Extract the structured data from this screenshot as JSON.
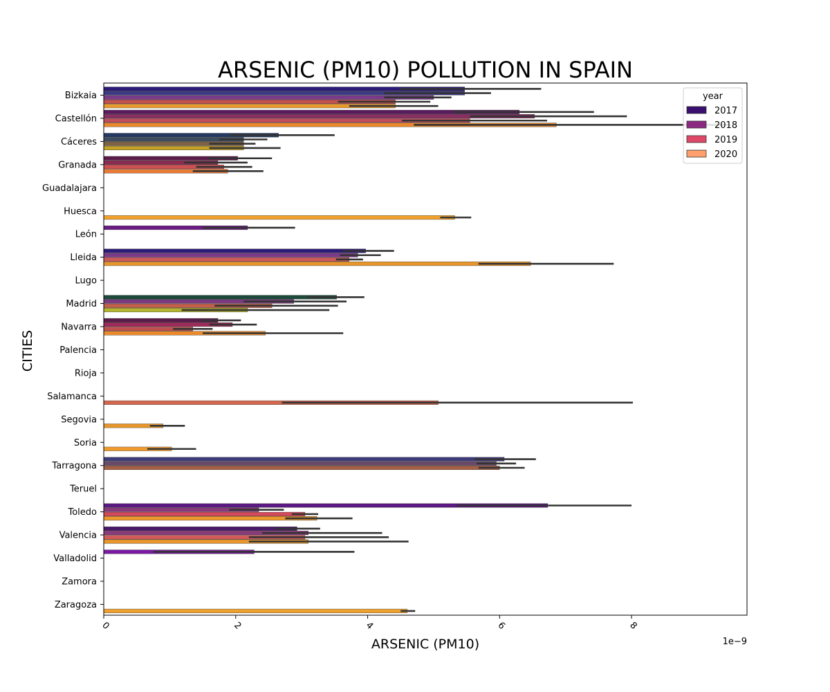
{
  "chart_data": {
    "type": "bar",
    "orientation": "horizontal",
    "title": "ARSENIC (PM10) POLLUTION IN SPAIN",
    "xlabel": "ARSENIC (PM10)",
    "ylabel": "CITIES",
    "x_offset_label": "1e−9",
    "xlim": [
      0,
      9.75
    ],
    "x_ticks": [
      0,
      2,
      4,
      6,
      8
    ],
    "x_tick_labels": [
      "0",
      "2",
      "4",
      "6",
      "8"
    ],
    "grid": false,
    "legend": {
      "title": "year",
      "placement": "top-right",
      "entries": [
        "2017",
        "2018",
        "2019",
        "2020"
      ]
    },
    "colors": {
      "2017": "#3b0f70",
      "2018": "#8c2981",
      "2019": "#de4968",
      "2020": "#fe9f6d",
      "errorbar": "#333333"
    },
    "categories": [
      "Bizkaia",
      "Castellón",
      "Cáceres",
      "Granada",
      "Guadalajara",
      "Huesca",
      "León",
      "Lleida",
      "Lugo",
      "Madrid",
      "Navarra",
      "Palencia",
      "Rioja",
      "Salamanca",
      "Segovia",
      "Soria",
      "Tarragona",
      "Teruel",
      "Toledo",
      "Valencia",
      "Valladolid",
      "Zamora",
      "Zaragoza"
    ],
    "bars": [
      {
        "city": 0,
        "pos": 0,
        "value": 5.47,
        "err": [
          4.48,
          6.63
        ],
        "color": "#2c1a78",
        "year": "2017"
      },
      {
        "city": 0,
        "pos": 1,
        "value": 5.47,
        "err": [
          4.25,
          5.87
        ],
        "color": "#3d3a85",
        "year": "2017"
      },
      {
        "city": 0,
        "pos": 2,
        "value": 5.0,
        "err": [
          4.25,
          5.27
        ],
        "color": "#7b3a8a",
        "year": "2018"
      },
      {
        "city": 0,
        "pos": 3,
        "value": 4.42,
        "err": [
          3.55,
          4.95
        ],
        "color": "#c5504f",
        "year": "2019"
      },
      {
        "city": 0,
        "pos": 4,
        "value": 4.42,
        "err": [
          3.72,
          5.07
        ],
        "color": "#e89a2c",
        "year": "2020"
      },
      {
        "city": 1,
        "pos": 0,
        "value": 6.3,
        "err": [
          5.3,
          7.43
        ],
        "color": "#5a1a5e",
        "year": "2017"
      },
      {
        "city": 1,
        "pos": 1,
        "value": 6.53,
        "err": [
          5.55,
          7.93
        ],
        "color": "#8a2f62",
        "year": "2018"
      },
      {
        "city": 1,
        "pos": 2,
        "value": 5.55,
        "err": [
          4.52,
          6.72
        ],
        "color": "#c14d5a",
        "year": "2019"
      },
      {
        "city": 1,
        "pos": 3,
        "value": 6.86,
        "err": [
          4.7,
          9.5
        ],
        "color": "#e9892c",
        "year": "2020"
      },
      {
        "city": 2,
        "pos": 0,
        "value": 2.65,
        "err": [
          1.92,
          3.5
        ],
        "color": "#243a63",
        "year": "2017"
      },
      {
        "city": 2,
        "pos": 1,
        "value": 2.12,
        "err": [
          1.75,
          2.48
        ],
        "color": "#3e4c60",
        "year": "2018"
      },
      {
        "city": 2,
        "pos": 2,
        "value": 2.12,
        "err": [
          1.6,
          2.3
        ],
        "color": "#7f6244",
        "year": "2019"
      },
      {
        "city": 2,
        "pos": 3,
        "value": 2.12,
        "err": [
          1.6,
          2.68
        ],
        "color": "#c4a226",
        "year": "2020"
      },
      {
        "city": 3,
        "pos": 0,
        "value": 2.03,
        "err": [
          1.57,
          2.55
        ],
        "color": "#5a1a4a",
        "year": "2017"
      },
      {
        "city": 3,
        "pos": 1,
        "value": 1.73,
        "err": [
          1.22,
          2.18
        ],
        "color": "#8c2a52",
        "year": "2018"
      },
      {
        "city": 3,
        "pos": 2,
        "value": 1.82,
        "err": [
          1.4,
          2.25
        ],
        "color": "#cf5050",
        "year": "2019"
      },
      {
        "city": 3,
        "pos": 3,
        "value": 1.88,
        "err": [
          1.35,
          2.42
        ],
        "color": "#ea7a35",
        "year": "2020"
      },
      {
        "city": 5,
        "pos": 3,
        "value": 5.32,
        "err": [
          5.1,
          5.57
        ],
        "color": "#f0a12c",
        "year": "2020"
      },
      {
        "city": 6,
        "pos": 0,
        "value": 2.18,
        "err": [
          1.5,
          2.9
        ],
        "color": "#6a1a82",
        "year": "2018"
      },
      {
        "city": 7,
        "pos": 0,
        "value": 3.97,
        "err": [
          3.62,
          4.4
        ],
        "color": "#2c1a78",
        "year": "2017"
      },
      {
        "city": 7,
        "pos": 1,
        "value": 3.85,
        "err": [
          3.58,
          4.2
        ],
        "color": "#7b3a8a",
        "year": "2018"
      },
      {
        "city": 7,
        "pos": 2,
        "value": 3.72,
        "err": [
          3.52,
          3.93
        ],
        "color": "#cf5a5a",
        "year": "2019"
      },
      {
        "city": 7,
        "pos": 3,
        "value": 6.47,
        "err": [
          5.68,
          7.73
        ],
        "color": "#e8962c",
        "year": "2020"
      },
      {
        "city": 9,
        "pos": 0,
        "value": 3.53,
        "err": [
          3.08,
          3.95
        ],
        "color": "#1e4a3c",
        "year": "2017"
      },
      {
        "city": 9,
        "pos": 1,
        "value": 2.88,
        "err": [
          2.12,
          3.68
        ],
        "color": "#7b3a80",
        "year": "2018"
      },
      {
        "city": 9,
        "pos": 2,
        "value": 2.55,
        "err": [
          1.68,
          3.55
        ],
        "color": "#c2604a",
        "year": "2019"
      },
      {
        "city": 9,
        "pos": 3,
        "value": 2.18,
        "err": [
          1.18,
          3.42
        ],
        "color": "#b4b42e",
        "year": "2020"
      },
      {
        "city": 10,
        "pos": 0,
        "value": 1.73,
        "err": [
          1.47,
          2.08
        ],
        "color": "#5a1a4a",
        "year": "2017"
      },
      {
        "city": 10,
        "pos": 1,
        "value": 1.95,
        "err": [
          1.6,
          2.32
        ],
        "color": "#a02a5a",
        "year": "2018"
      },
      {
        "city": 10,
        "pos": 2,
        "value": 1.35,
        "err": [
          1.05,
          1.65
        ],
        "color": "#c05050",
        "year": "2019"
      },
      {
        "city": 10,
        "pos": 3,
        "value": 2.45,
        "err": [
          1.5,
          3.63
        ],
        "color": "#ec8a2a",
        "year": "2020"
      },
      {
        "city": 13,
        "pos": 3,
        "value": 5.07,
        "err": [
          2.7,
          8.02
        ],
        "color": "#d2684e",
        "year": "2019"
      },
      {
        "city": 14,
        "pos": 3,
        "value": 0.9,
        "err": [
          0.7,
          1.23
        ],
        "color": "#e8962c",
        "year": "2020"
      },
      {
        "city": 15,
        "pos": 3,
        "value": 1.03,
        "err": [
          0.66,
          1.4
        ],
        "color": "#f09a2c",
        "year": "2020"
      },
      {
        "city": 16,
        "pos": 0,
        "value": 6.07,
        "err": [
          5.62,
          6.55
        ],
        "color": "#3e3a7a",
        "year": "2017"
      },
      {
        "city": 16,
        "pos": 1,
        "value": 5.95,
        "err": [
          5.65,
          6.25
        ],
        "color": "#6a4a6a",
        "year": "2018"
      },
      {
        "city": 16,
        "pos": 2,
        "value": 6.0,
        "err": [
          5.68,
          6.38
        ],
        "color": "#a86045",
        "year": "2019"
      },
      {
        "city": 18,
        "pos": 0,
        "value": 6.73,
        "err": [
          5.35,
          8.0
        ],
        "color": "#5a1a82",
        "year": "2017"
      },
      {
        "city": 18,
        "pos": 1,
        "value": 2.35,
        "err": [
          1.9,
          2.73
        ],
        "color": "#8a3a7a",
        "year": "2018"
      },
      {
        "city": 18,
        "pos": 2,
        "value": 3.05,
        "err": [
          2.85,
          3.25
        ],
        "color": "#d44a5a",
        "year": "2019"
      },
      {
        "city": 18,
        "pos": 3,
        "value": 3.23,
        "err": [
          2.75,
          3.77
        ],
        "color": "#ee9a2c",
        "year": "2020"
      },
      {
        "city": 19,
        "pos": 0,
        "value": 2.93,
        "err": [
          2.6,
          3.28
        ],
        "color": "#4a1a6a",
        "year": "2017"
      },
      {
        "city": 19,
        "pos": 1,
        "value": 3.1,
        "err": [
          2.4,
          4.22
        ],
        "color": "#8a3a7a",
        "year": "2018"
      },
      {
        "city": 19,
        "pos": 2,
        "value": 3.05,
        "err": [
          2.2,
          4.32
        ],
        "color": "#d45a5a",
        "year": "2019"
      },
      {
        "city": 19,
        "pos": 3,
        "value": 3.1,
        "err": [
          2.2,
          4.62
        ],
        "color": "#e8962c",
        "year": "2020"
      },
      {
        "city": 20,
        "pos": 0,
        "value": 2.28,
        "err": [
          0.75,
          3.8
        ],
        "color": "#7a1aa2",
        "year": "2018"
      },
      {
        "city": 22,
        "pos": 3,
        "value": 4.6,
        "err": [
          4.5,
          4.72
        ],
        "color": "#f0a02c",
        "year": "2020"
      }
    ]
  }
}
